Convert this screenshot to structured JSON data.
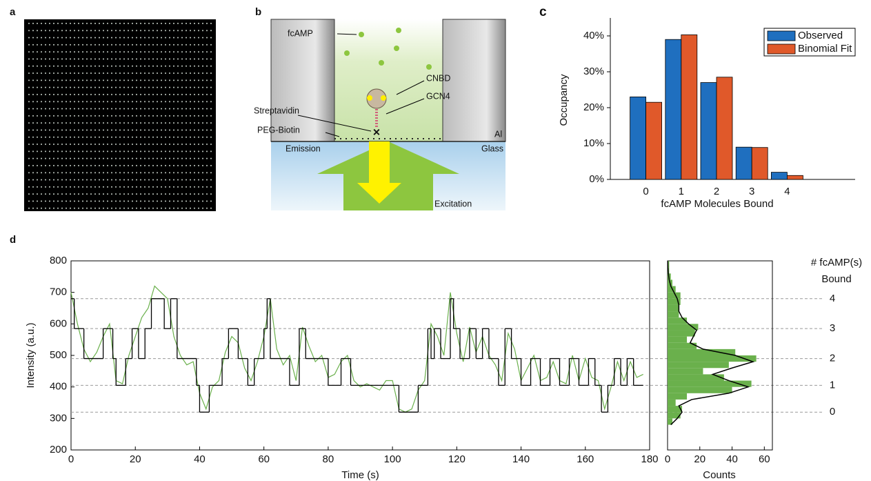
{
  "panel_labels": [
    "a",
    "b",
    "c",
    "d"
  ],
  "diagram": {
    "fcamp": "fcAMP",
    "cnbd": "CNBD",
    "gcn4": "GCN4",
    "streptavidin": "Streptavidin",
    "peg_biotin": "PEG-Biotin",
    "emission": "Emission",
    "al": "Al",
    "glass": "Glass",
    "excitation": "Excitation"
  },
  "chart_data": [
    {
      "type": "bar",
      "xlabel": "fcAMP Molecules Bound",
      "ylabel": "Occupancy",
      "categories": [
        "0",
        "1",
        "2",
        "3",
        "4"
      ],
      "series": [
        {
          "name": "Observed",
          "color": "#1f6fbf",
          "values": [
            23,
            39,
            27,
            9,
            2
          ]
        },
        {
          "name": "Binomial Fit",
          "color": "#e0592a",
          "values": [
            21.5,
            40.3,
            28.5,
            8.9,
            1.1
          ]
        }
      ],
      "ylim": [
        0,
        45
      ],
      "yticks": [
        {
          "value": 0,
          "label": "0%"
        },
        {
          "value": 10,
          "label": "10%"
        },
        {
          "value": 20,
          "label": "20%"
        },
        {
          "value": 30,
          "label": "30%"
        },
        {
          "value": 40,
          "label": "40%"
        }
      ],
      "legend": "top-right"
    },
    {
      "type": "line",
      "xlabel": "Time (s)",
      "ylabel": "Intensity (a.u.)",
      "xlim": [
        0,
        180
      ],
      "xticks": [
        0,
        20,
        40,
        60,
        80,
        100,
        120,
        140,
        160,
        180
      ],
      "ylim": [
        200,
        800
      ],
      "yticks": [
        200,
        300,
        400,
        500,
        600,
        700,
        800
      ],
      "series": [
        {
          "color": "#6ab04c",
          "x": [
            0,
            2,
            4,
            6,
            8,
            10,
            12,
            14,
            16,
            18,
            20,
            22,
            24,
            26,
            28,
            30,
            32,
            34,
            36,
            38,
            40,
            42,
            44,
            46,
            48,
            50,
            52,
            54,
            56,
            58,
            60,
            62,
            64,
            66,
            68,
            70,
            72,
            74,
            76,
            78,
            80,
            82,
            84,
            86,
            88,
            90,
            92,
            94,
            96,
            98,
            100,
            102,
            104,
            106,
            108,
            110,
            112,
            114,
            116,
            118,
            120,
            122,
            124,
            126,
            128,
            130,
            132,
            134,
            136,
            138,
            140,
            142,
            144,
            146,
            148,
            150,
            152,
            154,
            156,
            158,
            160,
            162,
            164,
            166,
            168,
            170,
            172,
            174,
            176,
            178
          ],
          "values": [
            700,
            600,
            520,
            480,
            510,
            560,
            600,
            420,
            410,
            500,
            560,
            620,
            650,
            720,
            700,
            680,
            560,
            500,
            470,
            480,
            380,
            330,
            400,
            420,
            510,
            560,
            540,
            460,
            420,
            480,
            560,
            680,
            520,
            470,
            500,
            420,
            590,
            530,
            480,
            500,
            430,
            440,
            480,
            500,
            420,
            400,
            410,
            400,
            390,
            420,
            420,
            330,
            320,
            330,
            390,
            420,
            600,
            560,
            500,
            700,
            570,
            480,
            590,
            510,
            560,
            500,
            470,
            420,
            570,
            520,
            420,
            460,
            500,
            420,
            430,
            480,
            420,
            410,
            500,
            420,
            490,
            430,
            420,
            330,
            400,
            480,
            420,
            480,
            430,
            440
          ]
        },
        {
          "color": "#000000",
          "step": true,
          "x": [
            0,
            1,
            4,
            10,
            13,
            14,
            17,
            19,
            21,
            23,
            25,
            29,
            31,
            33,
            39,
            40,
            43,
            47,
            49,
            52,
            55,
            57,
            60,
            61,
            62,
            68,
            71,
            73,
            80,
            84,
            87,
            102,
            108,
            111,
            112,
            113,
            115,
            118,
            119,
            121,
            124,
            126,
            128,
            130,
            133,
            135,
            137,
            140,
            143,
            146,
            149,
            152,
            155,
            158,
            161,
            163,
            165,
            167,
            169,
            171,
            173,
            175,
            178
          ],
          "values": [
            680,
            585,
            490,
            585,
            490,
            405,
            490,
            585,
            490,
            585,
            680,
            585,
            680,
            490,
            405,
            320,
            405,
            490,
            585,
            490,
            405,
            490,
            585,
            680,
            490,
            405,
            585,
            490,
            405,
            490,
            405,
            320,
            405,
            585,
            490,
            585,
            490,
            680,
            585,
            490,
            585,
            490,
            585,
            490,
            405,
            585,
            490,
            405,
            490,
            405,
            490,
            405,
            490,
            405,
            490,
            405,
            320,
            405,
            490,
            405,
            490,
            405,
            405
          ]
        }
      ],
      "levels": [
        {
          "value": 320,
          "label": "0"
        },
        {
          "value": 405,
          "label": "1"
        },
        {
          "value": 490,
          "label": "2"
        },
        {
          "value": 585,
          "label": "3"
        },
        {
          "value": 680,
          "label": "4"
        }
      ],
      "levels_title": [
        "# fcAMP(s)",
        "Bound"
      ]
    },
    {
      "type": "histogram",
      "orientation": "horizontal",
      "xlabel": "Counts",
      "color": "#6ab04c",
      "xlim": [
        0,
        65
      ],
      "xticks": [
        0,
        20,
        40,
        60
      ],
      "ylim": [
        200,
        800
      ],
      "bins": [
        280,
        300,
        320,
        340,
        360,
        380,
        400,
        420,
        440,
        460,
        480,
        500,
        520,
        540,
        560,
        580,
        600,
        620,
        640,
        660,
        680,
        700,
        720,
        740,
        760,
        780,
        800
      ],
      "values": [
        3,
        8,
        9,
        5,
        12,
        40,
        52,
        35,
        22,
        38,
        55,
        42,
        18,
        12,
        17,
        19,
        12,
        7,
        7,
        8,
        8,
        5,
        3,
        2,
        1,
        1
      ],
      "fit": {
        "color": "#000000",
        "y": [
          280,
          300,
          320,
          340,
          360,
          380,
          400,
          420,
          440,
          460,
          480,
          500,
          520,
          540,
          560,
          580,
          600,
          620,
          640,
          660,
          680,
          700,
          720,
          740,
          760,
          780,
          800
        ],
        "values": [
          2,
          6,
          9,
          7,
          15,
          38,
          50,
          38,
          28,
          40,
          53,
          42,
          22,
          14,
          16,
          18,
          13,
          9,
          7,
          7,
          6,
          4,
          2,
          1,
          0.5,
          0.2,
          0.1
        ]
      }
    }
  ]
}
